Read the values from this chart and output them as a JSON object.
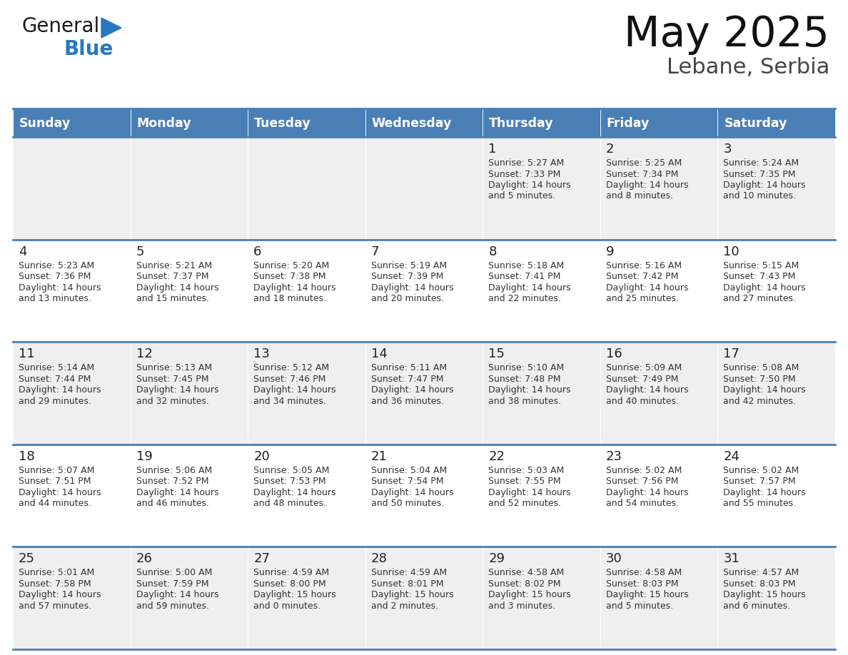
{
  "title": "May 2025",
  "subtitle": "Lebane, Serbia",
  "header_bg_color": "#4a7fb5",
  "header_text_color": "#ffffff",
  "cell_bg_row0": "#efefef",
  "cell_bg_row1": "#ffffff",
  "cell_bg_row2": "#efefef",
  "cell_bg_row3": "#ffffff",
  "cell_bg_row4": "#efefef",
  "text_color": "#222222",
  "info_color": "#333333",
  "days_of_week": [
    "Sunday",
    "Monday",
    "Tuesday",
    "Wednesday",
    "Thursday",
    "Friday",
    "Saturday"
  ],
  "weeks": [
    [
      {
        "day": "",
        "info": ""
      },
      {
        "day": "",
        "info": ""
      },
      {
        "day": "",
        "info": ""
      },
      {
        "day": "",
        "info": ""
      },
      {
        "day": "1",
        "info": "Sunrise: 5:27 AM\nSunset: 7:33 PM\nDaylight: 14 hours\nand 5 minutes."
      },
      {
        "day": "2",
        "info": "Sunrise: 5:25 AM\nSunset: 7:34 PM\nDaylight: 14 hours\nand 8 minutes."
      },
      {
        "day": "3",
        "info": "Sunrise: 5:24 AM\nSunset: 7:35 PM\nDaylight: 14 hours\nand 10 minutes."
      }
    ],
    [
      {
        "day": "4",
        "info": "Sunrise: 5:23 AM\nSunset: 7:36 PM\nDaylight: 14 hours\nand 13 minutes."
      },
      {
        "day": "5",
        "info": "Sunrise: 5:21 AM\nSunset: 7:37 PM\nDaylight: 14 hours\nand 15 minutes."
      },
      {
        "day": "6",
        "info": "Sunrise: 5:20 AM\nSunset: 7:38 PM\nDaylight: 14 hours\nand 18 minutes."
      },
      {
        "day": "7",
        "info": "Sunrise: 5:19 AM\nSunset: 7:39 PM\nDaylight: 14 hours\nand 20 minutes."
      },
      {
        "day": "8",
        "info": "Sunrise: 5:18 AM\nSunset: 7:41 PM\nDaylight: 14 hours\nand 22 minutes."
      },
      {
        "day": "9",
        "info": "Sunrise: 5:16 AM\nSunset: 7:42 PM\nDaylight: 14 hours\nand 25 minutes."
      },
      {
        "day": "10",
        "info": "Sunrise: 5:15 AM\nSunset: 7:43 PM\nDaylight: 14 hours\nand 27 minutes."
      }
    ],
    [
      {
        "day": "11",
        "info": "Sunrise: 5:14 AM\nSunset: 7:44 PM\nDaylight: 14 hours\nand 29 minutes."
      },
      {
        "day": "12",
        "info": "Sunrise: 5:13 AM\nSunset: 7:45 PM\nDaylight: 14 hours\nand 32 minutes."
      },
      {
        "day": "13",
        "info": "Sunrise: 5:12 AM\nSunset: 7:46 PM\nDaylight: 14 hours\nand 34 minutes."
      },
      {
        "day": "14",
        "info": "Sunrise: 5:11 AM\nSunset: 7:47 PM\nDaylight: 14 hours\nand 36 minutes."
      },
      {
        "day": "15",
        "info": "Sunrise: 5:10 AM\nSunset: 7:48 PM\nDaylight: 14 hours\nand 38 minutes."
      },
      {
        "day": "16",
        "info": "Sunrise: 5:09 AM\nSunset: 7:49 PM\nDaylight: 14 hours\nand 40 minutes."
      },
      {
        "day": "17",
        "info": "Sunrise: 5:08 AM\nSunset: 7:50 PM\nDaylight: 14 hours\nand 42 minutes."
      }
    ],
    [
      {
        "day": "18",
        "info": "Sunrise: 5:07 AM\nSunset: 7:51 PM\nDaylight: 14 hours\nand 44 minutes."
      },
      {
        "day": "19",
        "info": "Sunrise: 5:06 AM\nSunset: 7:52 PM\nDaylight: 14 hours\nand 46 minutes."
      },
      {
        "day": "20",
        "info": "Sunrise: 5:05 AM\nSunset: 7:53 PM\nDaylight: 14 hours\nand 48 minutes."
      },
      {
        "day": "21",
        "info": "Sunrise: 5:04 AM\nSunset: 7:54 PM\nDaylight: 14 hours\nand 50 minutes."
      },
      {
        "day": "22",
        "info": "Sunrise: 5:03 AM\nSunset: 7:55 PM\nDaylight: 14 hours\nand 52 minutes."
      },
      {
        "day": "23",
        "info": "Sunrise: 5:02 AM\nSunset: 7:56 PM\nDaylight: 14 hours\nand 54 minutes."
      },
      {
        "day": "24",
        "info": "Sunrise: 5:02 AM\nSunset: 7:57 PM\nDaylight: 14 hours\nand 55 minutes."
      }
    ],
    [
      {
        "day": "25",
        "info": "Sunrise: 5:01 AM\nSunset: 7:58 PM\nDaylight: 14 hours\nand 57 minutes."
      },
      {
        "day": "26",
        "info": "Sunrise: 5:00 AM\nSunset: 7:59 PM\nDaylight: 14 hours\nand 59 minutes."
      },
      {
        "day": "27",
        "info": "Sunrise: 4:59 AM\nSunset: 8:00 PM\nDaylight: 15 hours\nand 0 minutes."
      },
      {
        "day": "28",
        "info": "Sunrise: 4:59 AM\nSunset: 8:01 PM\nDaylight: 15 hours\nand 2 minutes."
      },
      {
        "day": "29",
        "info": "Sunrise: 4:58 AM\nSunset: 8:02 PM\nDaylight: 15 hours\nand 3 minutes."
      },
      {
        "day": "30",
        "info": "Sunrise: 4:58 AM\nSunset: 8:03 PM\nDaylight: 15 hours\nand 5 minutes."
      },
      {
        "day": "31",
        "info": "Sunrise: 4:57 AM\nSunset: 8:03 PM\nDaylight: 15 hours\nand 6 minutes."
      }
    ]
  ],
  "logo_color_general": "#1a1a1a",
  "logo_color_blue": "#2878c0",
  "logo_triangle_color": "#2878c0",
  "title_color": "#111111",
  "subtitle_color": "#444444",
  "fig_width": 11.88,
  "fig_height": 9.18,
  "dpi": 100
}
